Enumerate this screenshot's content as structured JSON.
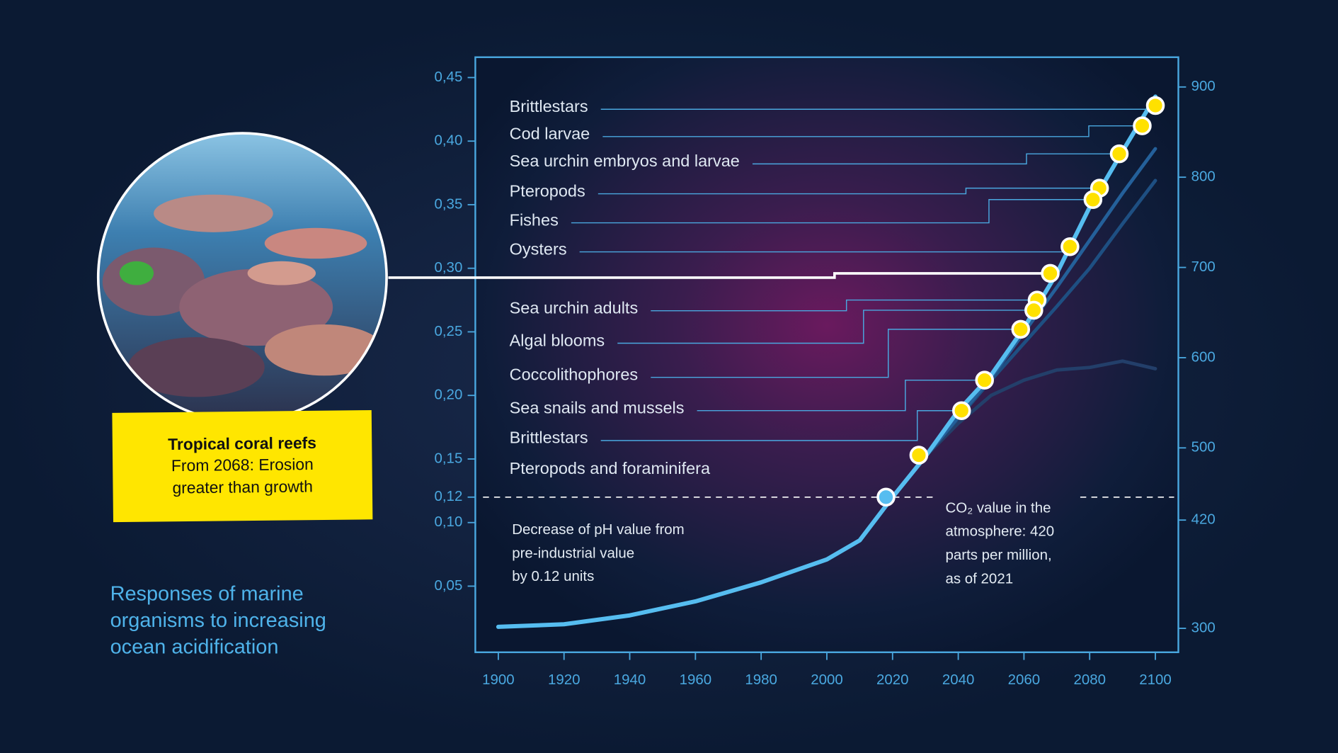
{
  "chart_data": {
    "type": "line",
    "title": [
      "Responses of marine",
      "organisms to increasing",
      "ocean acidification"
    ],
    "xlim": [
      1893,
      2107
    ],
    "ylim": [
      -0.002,
      0.466
    ],
    "y2lim": [
      273.5,
      933
    ],
    "xticks": [
      1900,
      1920,
      1940,
      1960,
      1980,
      2000,
      2020,
      2040,
      2060,
      2080,
      2100
    ],
    "yticks": [
      {
        "value": 0.05,
        "label": "0,05"
      },
      {
        "value": 0.1,
        "label": "0,10"
      },
      {
        "value": 0.12,
        "label": "0,12"
      },
      {
        "value": 0.15,
        "label": "0,15"
      },
      {
        "value": 0.2,
        "label": "0,20"
      },
      {
        "value": 0.25,
        "label": "0,25"
      },
      {
        "value": 0.3,
        "label": "0,30"
      },
      {
        "value": 0.35,
        "label": "0,35"
      },
      {
        "value": 0.4,
        "label": "0,40"
      },
      {
        "value": 0.45,
        "label": "0,45"
      }
    ],
    "y2ticks": [
      300,
      420,
      500,
      600,
      700,
      800,
      900
    ],
    "series": [
      {
        "color": "#56bdf0",
        "x": [
          1900,
          1920,
          1940,
          1960,
          1980,
          2000,
          2010,
          2020,
          2030,
          2040,
          2050,
          2060,
          2070,
          2080,
          2090,
          2100
        ],
        "values": [
          0.018,
          0.02,
          0.027,
          0.038,
          0.053,
          0.071,
          0.086,
          0.12,
          0.152,
          0.188,
          0.216,
          0.253,
          0.296,
          0.348,
          0.392,
          0.435
        ]
      },
      {
        "color": "#24609a",
        "x": [
          2030,
          2050,
          2070,
          2080,
          2090,
          2100
        ],
        "values": [
          0.152,
          0.214,
          0.285,
          0.322,
          0.359,
          0.394
        ]
      },
      {
        "color": "#1e4f82",
        "x": [
          2030,
          2050,
          2070,
          2080,
          2090,
          2100
        ],
        "values": [
          0.152,
          0.212,
          0.27,
          0.3,
          0.335,
          0.369
        ]
      },
      {
        "color": "#233f6a",
        "x": [
          2030,
          2040,
          2050,
          2060,
          2070,
          2080,
          2090,
          2100
        ],
        "values": [
          0.152,
          0.178,
          0.2,
          0.212,
          0.22,
          0.222,
          0.227,
          0.221
        ]
      }
    ],
    "marker_color": "#ffe100",
    "points": [
      {
        "label": "Brittlestars",
        "year": 2100,
        "value": 0.428
      },
      {
        "label": "Cod larvae",
        "year": 2096,
        "value": 0.412
      },
      {
        "label": "Sea urchin embryos and larvae",
        "year": 2089,
        "value": 0.39
      },
      {
        "label": "Pteropods",
        "year": 2083,
        "value": 0.363
      },
      {
        "label": "Fishes",
        "year": 2081,
        "value": 0.354
      },
      {
        "label": "Oysters",
        "year": 2074,
        "value": 0.317
      },
      {
        "label": "Sea urchin adults",
        "year": 2064,
        "value": 0.275
      },
      {
        "label": "Algal blooms",
        "year": 2063,
        "value": 0.267
      },
      {
        "label": "Coccolithophores",
        "year": 2059,
        "value": 0.252
      },
      {
        "label": "Sea snails and mussels",
        "year": 2048,
        "value": 0.212
      },
      {
        "label": "Brittlestars",
        "year": 2041,
        "value": 0.188
      },
      {
        "label": "Pteropods and foraminifera",
        "year": 2028,
        "value": 0.153
      }
    ],
    "coral_point": {
      "year": 2068,
      "value": 0.296
    },
    "reference_point": {
      "year": 2018,
      "value": 0.12
    },
    "coral": {
      "title": "Tropical coral reefs",
      "lines": [
        "From 2068: Erosion",
        "greater than growth"
      ]
    },
    "ph_note": [
      "Decrease of pH value from",
      "pre-industrial value",
      "by 0.12 units"
    ],
    "co2_note": [
      "CO₂ value in the",
      "atmosphere: 420",
      "parts per million,",
      "as of 2021"
    ]
  }
}
